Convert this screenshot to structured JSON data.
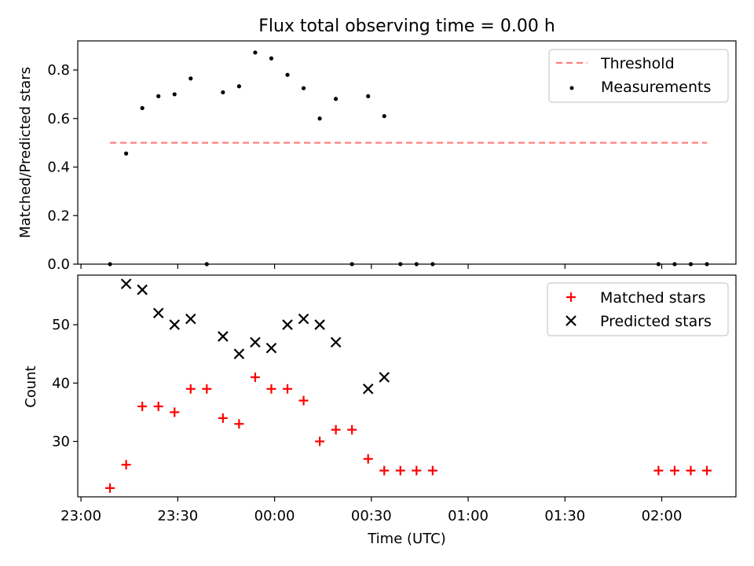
{
  "chart_data": [
    {
      "type": "scatter",
      "title": "Flux total observing time = 0.00 h",
      "ylabel": "Matched/Predicted stars",
      "xlabel": "",
      "ylim": [
        0.0,
        0.92
      ],
      "yticks": [
        "0.0",
        "0.2",
        "0.4",
        "0.6",
        "0.8"
      ],
      "grid": false,
      "legend_position": "upper-right",
      "threshold": {
        "name": "Threshold",
        "value": 0.5,
        "x_start": "23:09",
        "x_end": "02:14",
        "color": "#ff7f7f",
        "style": "dashed"
      },
      "series": [
        {
          "name": "Measurements",
          "marker": "dot",
          "color": "#000000",
          "x": [
            "23:09",
            "23:14",
            "23:19",
            "23:24",
            "23:29",
            "23:34",
            "23:39",
            "23:44",
            "23:49",
            "23:54",
            "23:59",
            "00:04",
            "00:09",
            "00:14",
            "00:19",
            "00:24",
            "00:29",
            "00:34",
            "00:39",
            "00:44",
            "00:49",
            "01:59",
            "02:04",
            "02:09",
            "02:14"
          ],
          "y": [
            0.0,
            0.456,
            0.643,
            0.692,
            0.7,
            0.765,
            0.0,
            0.708,
            0.733,
            0.872,
            0.848,
            0.78,
            0.725,
            0.6,
            0.681,
            0.0,
            0.692,
            0.61,
            0.0,
            0.0,
            0.0,
            0.0,
            0.0,
            0.0,
            0.0
          ]
        }
      ]
    },
    {
      "type": "scatter",
      "xlabel": "Time (UTC)",
      "ylabel": "Count",
      "ylim": [
        20.5,
        58.5
      ],
      "yticks": [
        "30",
        "40",
        "50"
      ],
      "xticks": [
        "23:00",
        "23:30",
        "00:00",
        "00:30",
        "01:00",
        "01:30",
        "02:00"
      ],
      "xlim": [
        "22:59",
        "02:23"
      ],
      "grid": false,
      "legend_position": "upper-right",
      "series": [
        {
          "name": "Matched stars",
          "marker": "plus",
          "color": "#ff0000",
          "x": [
            "23:09",
            "23:14",
            "23:19",
            "23:24",
            "23:29",
            "23:34",
            "23:39",
            "23:44",
            "23:49",
            "23:54",
            "23:59",
            "00:04",
            "00:09",
            "00:14",
            "00:19",
            "00:24",
            "00:29",
            "00:34",
            "00:39",
            "00:44",
            "00:49",
            "01:59",
            "02:04",
            "02:09",
            "02:14"
          ],
          "y": [
            22,
            26,
            36,
            36,
            35,
            39,
            39,
            34,
            33,
            41,
            39,
            39,
            37,
            30,
            32,
            32,
            27,
            25,
            25,
            25,
            25,
            25,
            25,
            25,
            25
          ]
        },
        {
          "name": "Predicted stars",
          "marker": "x",
          "color": "#000000",
          "x": [
            "23:14",
            "23:19",
            "23:24",
            "23:29",
            "23:34",
            "23:44",
            "23:49",
            "23:54",
            "23:59",
            "00:04",
            "00:09",
            "00:14",
            "00:19",
            "00:29",
            "00:34"
          ],
          "y": [
            57,
            56,
            52,
            50,
            51,
            48,
            45,
            47,
            46,
            50,
            51,
            50,
            47,
            39,
            41
          ]
        }
      ]
    }
  ]
}
